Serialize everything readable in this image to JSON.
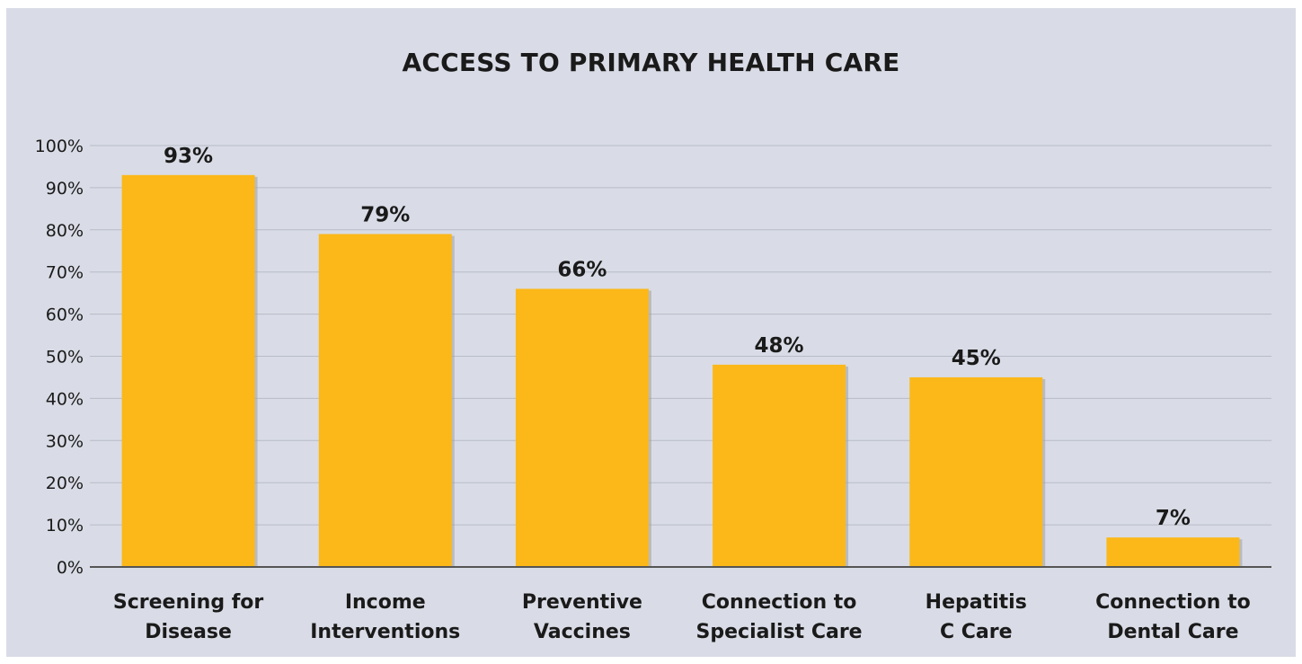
{
  "chart_data": {
    "type": "bar",
    "title": "ACCESS TO PRIMARY HEALTH CARE",
    "xlabel": "",
    "ylabel": "",
    "categories": [
      [
        "Screening for",
        "Disease"
      ],
      [
        "Income",
        "Interventions"
      ],
      [
        "Preventive",
        "Vaccines"
      ],
      [
        "Connection to",
        "Specialist Care"
      ],
      [
        "Hepatitis",
        "C Care"
      ],
      [
        "Connection to",
        "Dental Care"
      ]
    ],
    "values": [
      93,
      79,
      66,
      48,
      45,
      7
    ],
    "data_labels": [
      "93%",
      "79%",
      "66%",
      "48%",
      "45%",
      "7%"
    ],
    "ylim": [
      0,
      100
    ],
    "yticks": [
      0,
      10,
      20,
      30,
      40,
      50,
      60,
      70,
      80,
      90,
      100
    ],
    "ytick_labels": [
      "0%",
      "10%",
      "20%",
      "30%",
      "40%",
      "50%",
      "60%",
      "70%",
      "80%",
      "90%",
      "100%"
    ],
    "grid": true,
    "legend": "none",
    "colors": {
      "bar": "#fbb818",
      "bar_shadow": "#a0a0a0",
      "background": "#d9dce6",
      "gridline": "#b8bcc6",
      "axis": "#555555"
    }
  }
}
